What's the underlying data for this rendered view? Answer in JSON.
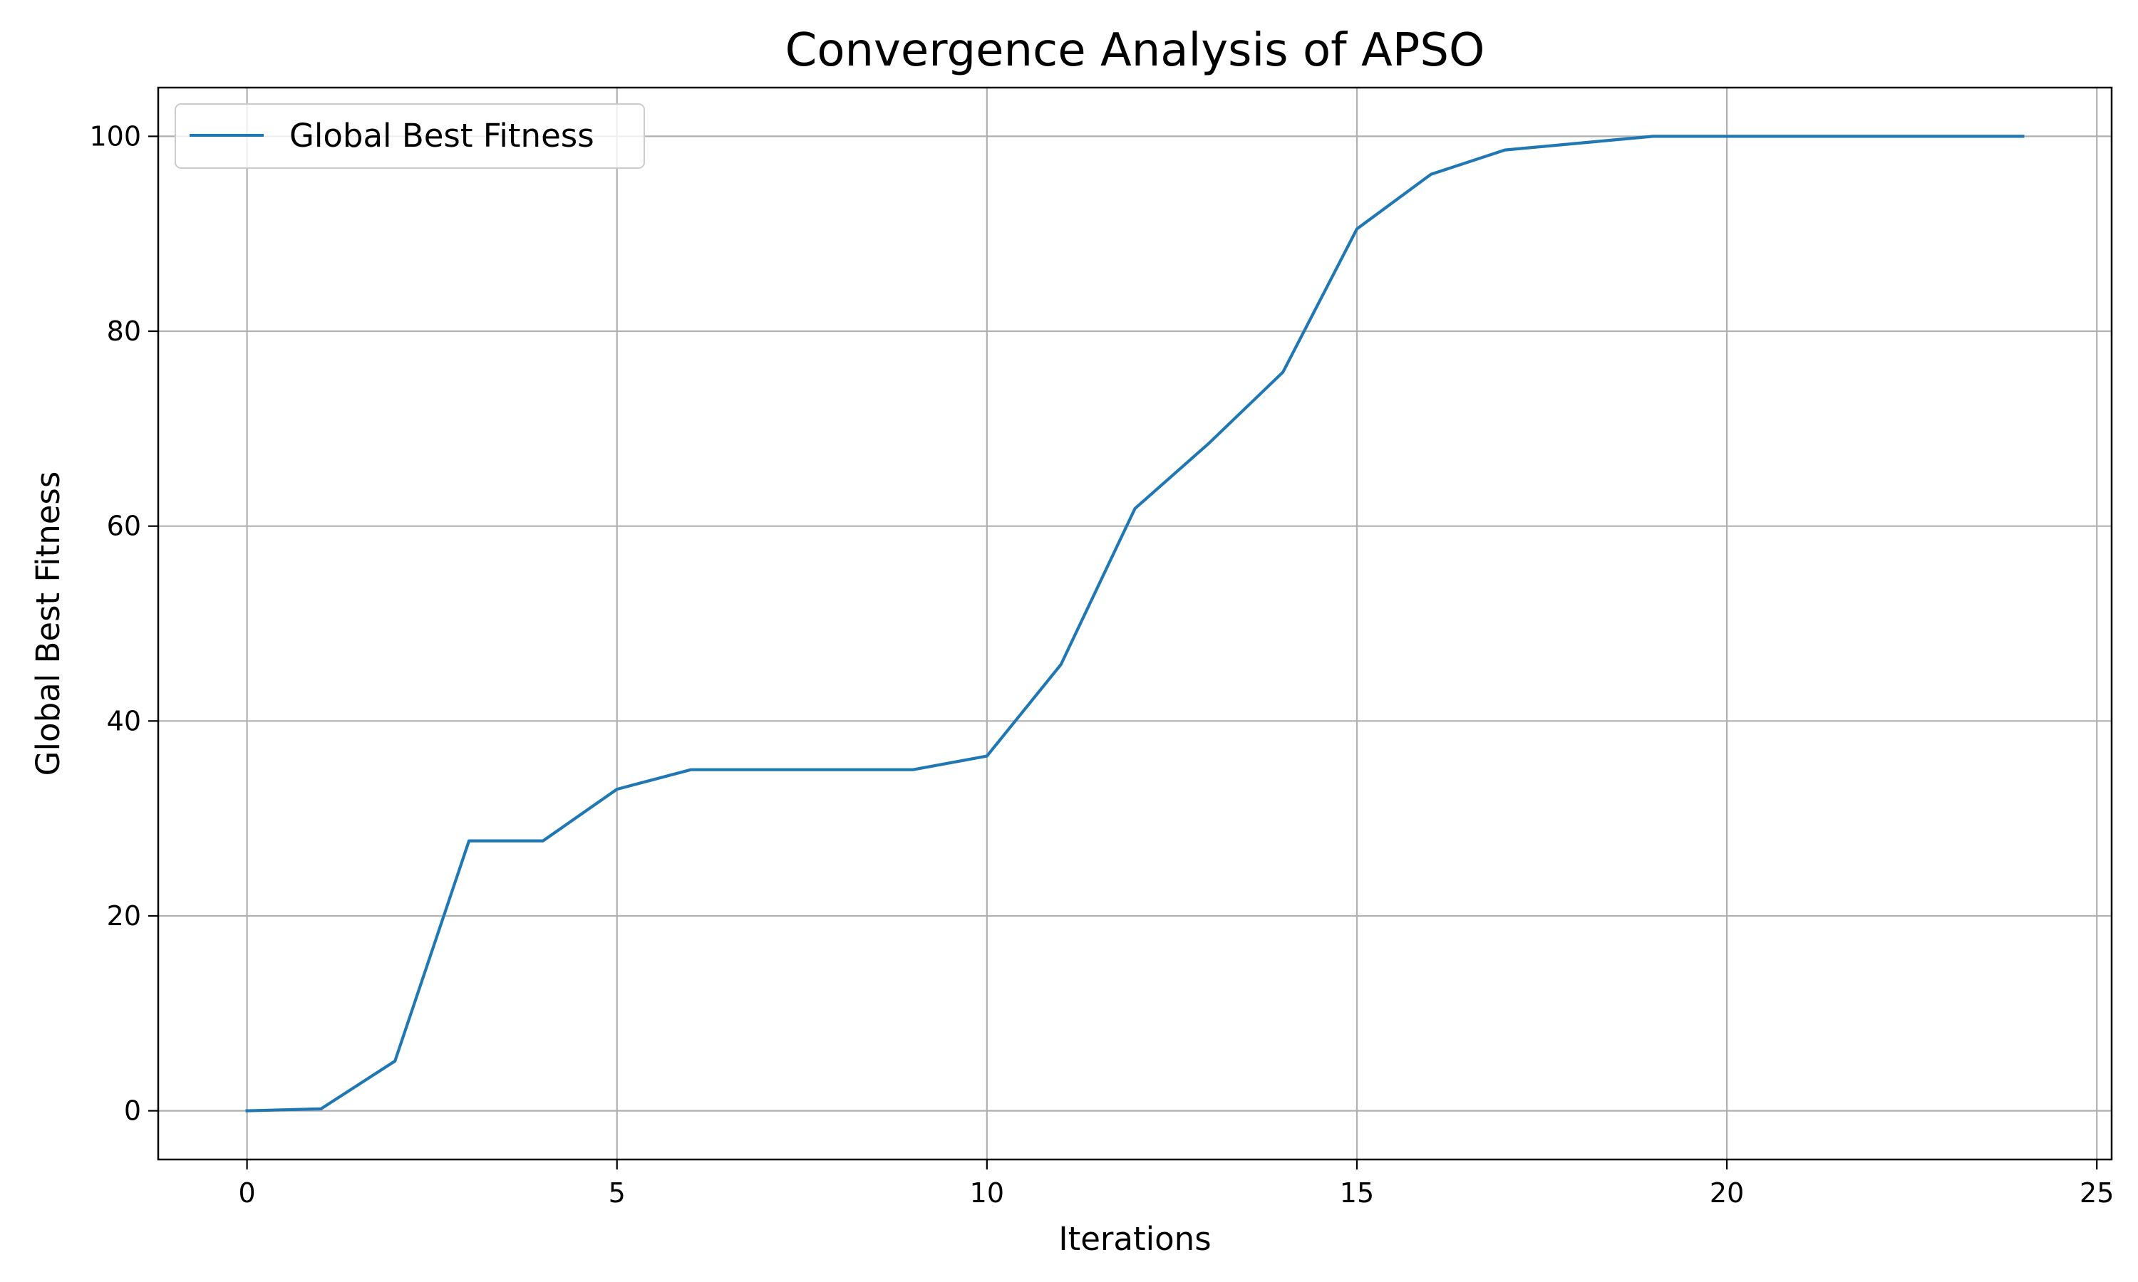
{
  "chart_data": {
    "type": "line",
    "title": "Convergence Analysis of APSO",
    "xlabel": "Iterations",
    "ylabel": "Global Best Fitness",
    "xlim": [
      -1.2,
      25.2
    ],
    "ylim": [
      -5,
      105
    ],
    "xticks": [
      0,
      5,
      10,
      15,
      20,
      25
    ],
    "yticks": [
      0,
      20,
      40,
      60,
      80,
      100
    ],
    "grid": true,
    "legend_position": "upper-left",
    "colors": {
      "series": "#1f77b4",
      "grid": "#b0b0b0",
      "axes": "#000000"
    },
    "series": [
      {
        "name": "Global Best Fitness",
        "x": [
          0,
          1,
          2,
          3,
          4,
          5,
          6,
          7,
          8,
          9,
          10,
          11,
          12,
          13,
          14,
          15,
          16,
          17,
          18,
          19,
          20,
          21,
          22,
          23,
          24
        ],
        "y": [
          0,
          0.2,
          5.1,
          27.7,
          27.7,
          33.0,
          35.0,
          35.0,
          35.0,
          35.0,
          36.4,
          45.8,
          61.8,
          68.5,
          75.8,
          90.5,
          96.1,
          98.6,
          99.3,
          100,
          100,
          100,
          100,
          100,
          100
        ]
      }
    ]
  }
}
